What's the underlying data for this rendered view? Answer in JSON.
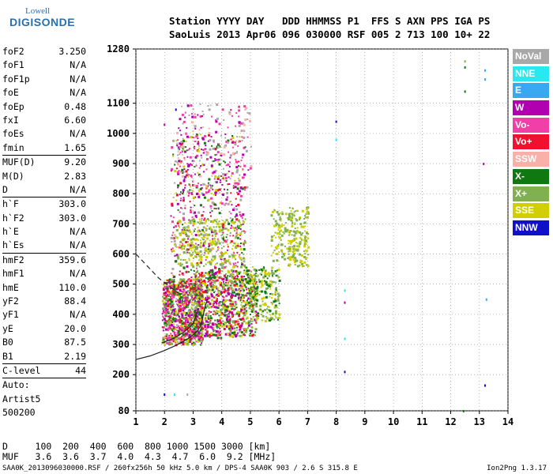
{
  "logo": {
    "line1": "Lowell",
    "line2": "DIGISONDE"
  },
  "header": {
    "labels": "Station YYYY DAY   DDD HHMMSS P1  FFS S AXN PPS IGA PS",
    "values": "SaoLuis 2013 Apr06 096 030000 RSF 005 2 713 100 10+ 22"
  },
  "params": [
    {
      "name": "foF2",
      "value": "3.250"
    },
    {
      "name": "foF1",
      "value": "N/A"
    },
    {
      "name": "foF1p",
      "value": "N/A"
    },
    {
      "name": "foE",
      "value": "N/A"
    },
    {
      "name": "foEp",
      "value": "0.48"
    },
    {
      "name": "fxI",
      "value": "6.60"
    },
    {
      "name": "foEs",
      "value": "N/A"
    },
    {
      "name": "fmin",
      "value": "1.65"
    },
    {
      "sep": true
    },
    {
      "name": "MUF(D)",
      "value": "9.20"
    },
    {
      "name": "M(D)",
      "value": "2.83"
    },
    {
      "name": "D",
      "value": "N/A"
    },
    {
      "sep": true
    },
    {
      "name": "h`F",
      "value": "303.0"
    },
    {
      "name": "h`F2",
      "value": "303.0"
    },
    {
      "name": "h`E",
      "value": "N/A"
    },
    {
      "name": "h`Es",
      "value": "N/A"
    },
    {
      "sep": true
    },
    {
      "name": "hmF2",
      "value": "359.6"
    },
    {
      "name": "hmF1",
      "value": "N/A"
    },
    {
      "name": "hmE",
      "value": "110.0"
    },
    {
      "name": "yF2",
      "value": "88.4"
    },
    {
      "name": "yF1",
      "value": "N/A"
    },
    {
      "name": "yE",
      "value": "20.0"
    },
    {
      "name": "B0",
      "value": "87.5"
    },
    {
      "name": "B1",
      "value": "2.19"
    },
    {
      "sep": true
    },
    {
      "name": "C-level",
      "value": "44"
    },
    {
      "sep": true
    },
    {
      "text": "Auto:"
    },
    {
      "text": "Artist5"
    },
    {
      "text": "500200"
    }
  ],
  "legend": [
    {
      "label": "NoVal",
      "color": "#a8a8a8"
    },
    {
      "label": "NNE",
      "color": "#28e8f0"
    },
    {
      "label": "E",
      "color": "#3aa8f0"
    },
    {
      "label": "W",
      "color": "#b000b0"
    },
    {
      "label": "Vo-",
      "color": "#f040a8"
    },
    {
      "label": "Vo+",
      "color": "#f01030"
    },
    {
      "label": "SSW",
      "color": "#f8b0a8"
    },
    {
      "label": "X-",
      "color": "#107810"
    },
    {
      "label": "X+",
      "color": "#80b050"
    },
    {
      "label": "SSE",
      "color": "#d0d000"
    },
    {
      "label": "NNW",
      "color": "#1010c8"
    }
  ],
  "footer": {
    "d_row": "D     100  200  400  600  800 1000 1500 3000 [km]",
    "muf_row": "MUF   3.6  3.6  3.7  4.0  4.3  4.7  6.0  9.2 [MHz]"
  },
  "meta": "SAA0K_2013096030000.RSF / 260fx256h 50 kHz 5.0 km / DPS-4 SAA0K 903 / 2.6 S 315.8 E",
  "version": "Ion2Png 1.3.17",
  "chart_data": {
    "type": "scatter",
    "x_ticks": [
      1,
      2,
      3,
      4,
      5,
      6,
      7,
      8,
      9,
      10,
      11,
      12,
      13,
      14
    ],
    "y_ticks": [
      80,
      200,
      300,
      400,
      500,
      600,
      700,
      800,
      900,
      1000,
      1100,
      1280
    ],
    "xlim": [
      1,
      14
    ],
    "ylim": [
      80,
      1280
    ],
    "grid": "dotted",
    "legend_placement": "right",
    "profile_solid": [
      [
        1.0,
        250
      ],
      [
        1.5,
        262
      ],
      [
        2.0,
        280
      ],
      [
        2.4,
        297
      ],
      [
        2.8,
        318
      ],
      [
        3.0,
        332
      ],
      [
        3.15,
        345
      ],
      [
        3.25,
        359.6
      ],
      [
        3.3,
        375
      ],
      [
        3.35,
        395
      ],
      [
        3.4,
        420
      ],
      [
        3.5,
        450
      ]
    ],
    "profile_dashed": [
      [
        1.0,
        600
      ],
      [
        1.4,
        560
      ],
      [
        1.8,
        520
      ],
      [
        2.2,
        490
      ],
      [
        2.5,
        470
      ]
    ],
    "trace_dark": [
      [
        1.9,
        305
      ],
      [
        2.2,
        315
      ],
      [
        2.5,
        330
      ],
      [
        2.8,
        350
      ],
      [
        3.0,
        370
      ],
      [
        3.1,
        395
      ],
      [
        3.2,
        420
      ]
    ],
    "clusters": [
      {
        "x": [
          1.9,
          3.3
        ],
        "y": [
          300,
          520
        ],
        "n": 900,
        "colors": [
          "#f01030",
          "#f040a8",
          "#b000b0",
          "#107810",
          "#d0d000",
          "#80b050"
        ]
      },
      {
        "x": [
          2.2,
          4.8
        ],
        "y": [
          320,
          1000
        ],
        "n": 900,
        "colors": [
          "#b000b0",
          "#f040a8",
          "#f01030",
          "#d0d000",
          "#107810",
          "#a8a8a8"
        ]
      },
      {
        "x": [
          3.0,
          5.2
        ],
        "y": [
          330,
          550
        ],
        "n": 700,
        "colors": [
          "#d0d000",
          "#80b050",
          "#107810",
          "#f01030",
          "#b000b0"
        ]
      },
      {
        "x": [
          2.4,
          4.8
        ],
        "y": [
          560,
          720
        ],
        "n": 300,
        "colors": [
          "#d0d000",
          "#80b050"
        ]
      },
      {
        "x": [
          4.8,
          6.0
        ],
        "y": [
          380,
          560
        ],
        "n": 250,
        "colors": [
          "#d0d000",
          "#80b050",
          "#107810"
        ]
      },
      {
        "x": [
          5.7,
          6.6
        ],
        "y": [
          580,
          750
        ],
        "n": 120,
        "colors": [
          "#d0d000",
          "#80b050"
        ]
      },
      {
        "x": [
          6.3,
          7.0
        ],
        "y": [
          560,
          760
        ],
        "n": 150,
        "colors": [
          "#d0d000",
          "#80b050"
        ]
      },
      {
        "x": [
          2.4,
          5.0
        ],
        "y": [
          800,
          1100
        ],
        "n": 200,
        "colors": [
          "#a8a8a8",
          "#f8b0a8",
          "#b000b0",
          "#f040a8"
        ]
      }
    ],
    "isolated": [
      {
        "x": 2.0,
        "y": 1030,
        "c": "#b000b0"
      },
      {
        "x": 2.4,
        "y": 1080,
        "c": "#1010c8"
      },
      {
        "x": 2.0,
        "y": 135,
        "c": "#1010c8"
      },
      {
        "x": 2.35,
        "y": 135,
        "c": "#28e8f0"
      },
      {
        "x": 2.8,
        "y": 135,
        "c": "#a8a8a8"
      },
      {
        "x": 8.0,
        "y": 1040,
        "c": "#1010c8"
      },
      {
        "x": 8.0,
        "y": 980,
        "c": "#28e8f0"
      },
      {
        "x": 8.3,
        "y": 480,
        "c": "#28e8f0"
      },
      {
        "x": 8.3,
        "y": 440,
        "c": "#b000b0"
      },
      {
        "x": 8.3,
        "y": 320,
        "c": "#28e8f0"
      },
      {
        "x": 8.3,
        "y": 210,
        "c": "#1010c8"
      },
      {
        "x": 12.5,
        "y": 1240,
        "c": "#80b050"
      },
      {
        "x": 12.5,
        "y": 1220,
        "c": "#107810"
      },
      {
        "x": 12.5,
        "y": 1140,
        "c": "#107810"
      },
      {
        "x": 13.2,
        "y": 1210,
        "c": "#3aa8f0"
      },
      {
        "x": 13.2,
        "y": 1180,
        "c": "#3aa8f0"
      },
      {
        "x": 13.15,
        "y": 900,
        "c": "#b000b0"
      },
      {
        "x": 13.25,
        "y": 450,
        "c": "#3aa8f0"
      },
      {
        "x": 13.2,
        "y": 165,
        "c": "#1010c8"
      },
      {
        "x": 12.45,
        "y": 80,
        "c": "#107810"
      }
    ]
  }
}
